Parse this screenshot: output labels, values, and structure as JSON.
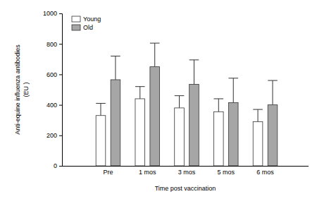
{
  "chart_data": {
    "type": "bar",
    "x_label": "Time post vaccination",
    "y_label": [
      "Anti-equine influenza antibodies",
      "(EU )"
    ],
    "categories": [
      "Pre",
      "1 mos",
      "3 mos",
      "5 mos",
      "6 mos"
    ],
    "series": [
      {
        "name": "Young",
        "color": "#ffffff",
        "values": [
          330,
          440,
          380,
          355,
          290
        ],
        "errors": [
          80,
          80,
          80,
          85,
          80
        ]
      },
      {
        "name": "Old",
        "color": "#a6a6a6",
        "values": [
          565,
          650,
          535,
          415,
          400
        ],
        "errors": [
          155,
          155,
          160,
          160,
          160
        ]
      }
    ],
    "ylim": [
      0,
      1000
    ],
    "yticks": [
      0,
      200,
      400,
      600,
      800,
      1000
    ],
    "legend": "upper-left",
    "grid": false
  }
}
